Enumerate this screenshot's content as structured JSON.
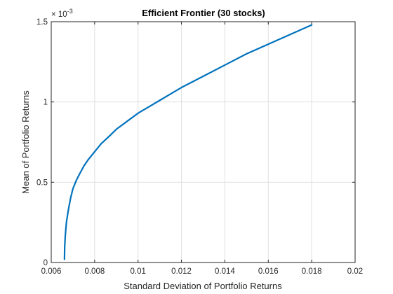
{
  "chart_data": {
    "type": "line",
    "title": "Efficient Frontier (30 stocks)",
    "xlabel": "Standard Deviation of Portfolio Returns",
    "ylabel": "Mean of Portfolio Returns",
    "xlim": [
      0.006,
      0.02
    ],
    "ylim": [
      0,
      0.0015
    ],
    "x_ticks": [
      0.006,
      0.008,
      0.01,
      0.012,
      0.014,
      0.016,
      0.018,
      0.02
    ],
    "x_tick_labels": [
      "0.006",
      "0.008",
      "0.01",
      "0.012",
      "0.014",
      "0.016",
      "0.018",
      "0.02"
    ],
    "y_ticks": [
      0,
      0.0005,
      0.001,
      0.0015
    ],
    "y_tick_labels": [
      "0",
      "0.5",
      "1",
      "1.5"
    ],
    "y_exponent_label": "× 10",
    "y_exponent_power": "-3",
    "grid": true,
    "legend": "none",
    "series": [
      {
        "color": "#0072BD",
        "x": [
          0.00661,
          0.00662,
          0.00665,
          0.0067,
          0.00678,
          0.00689,
          0.007,
          0.00715,
          0.0073,
          0.0075,
          0.0077,
          0.008,
          0.0083,
          0.0087,
          0.009,
          0.0095,
          0.01,
          0.0105,
          0.011,
          0.0115,
          0.012,
          0.013,
          0.014,
          0.015,
          0.016,
          0.017,
          0.018
        ],
        "y": [
          2e-05,
          0.0001,
          0.00017,
          0.00025,
          0.00032,
          0.0004,
          0.00046,
          0.00051,
          0.00055,
          0.0006,
          0.00064,
          0.00069,
          0.00074,
          0.00079,
          0.00083,
          0.00088,
          0.00093,
          0.00097,
          0.00101,
          0.00105,
          0.00109,
          0.00116,
          0.00123,
          0.0013,
          0.00136,
          0.00142,
          0.00148
        ]
      }
    ]
  }
}
